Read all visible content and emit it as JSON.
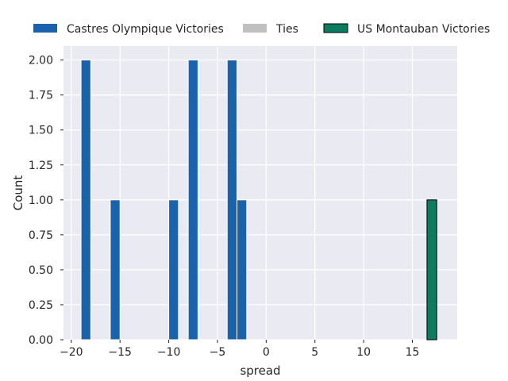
{
  "chart_data": {
    "type": "bar",
    "xlabel": "spread",
    "ylabel": "Count",
    "xlim": [
      -20.8,
      19.6
    ],
    "ylim": [
      0,
      2.1
    ],
    "x_ticks": [
      -20,
      -15,
      -10,
      -5,
      0,
      5,
      10,
      15
    ],
    "x_tick_labels": [
      "−20",
      "−15",
      "−10",
      "−5",
      "0",
      "5",
      "10",
      "15"
    ],
    "y_ticks": [
      0,
      0.25,
      0.5,
      0.75,
      1.0,
      1.25,
      1.5,
      1.75,
      2.0
    ],
    "y_tick_labels": [
      "0.00",
      "0.25",
      "0.50",
      "0.75",
      "1.00",
      "1.25",
      "1.50",
      "1.75",
      "2.00"
    ],
    "grid": true,
    "legend_position": "top",
    "bin_width": 1,
    "series": [
      {
        "name": "Castres Olympique Victories",
        "color": "#1a62ac",
        "edge_color": "#ffffff",
        "bins": [
          {
            "start": -19,
            "count": 2
          },
          {
            "start": -16,
            "count": 1
          },
          {
            "start": -10,
            "count": 1
          },
          {
            "start": -8,
            "count": 2
          },
          {
            "start": -4,
            "count": 2
          },
          {
            "start": -3,
            "count": 1
          }
        ]
      },
      {
        "name": "Ties",
        "color": "#c0c0c0",
        "edge_color": "#ffffff",
        "bins": []
      },
      {
        "name": "US Montauban Victories",
        "color": "#0b7c5f",
        "edge_color": "#000000",
        "bins": [
          {
            "start": 16.5,
            "count": 1
          }
        ]
      }
    ]
  }
}
